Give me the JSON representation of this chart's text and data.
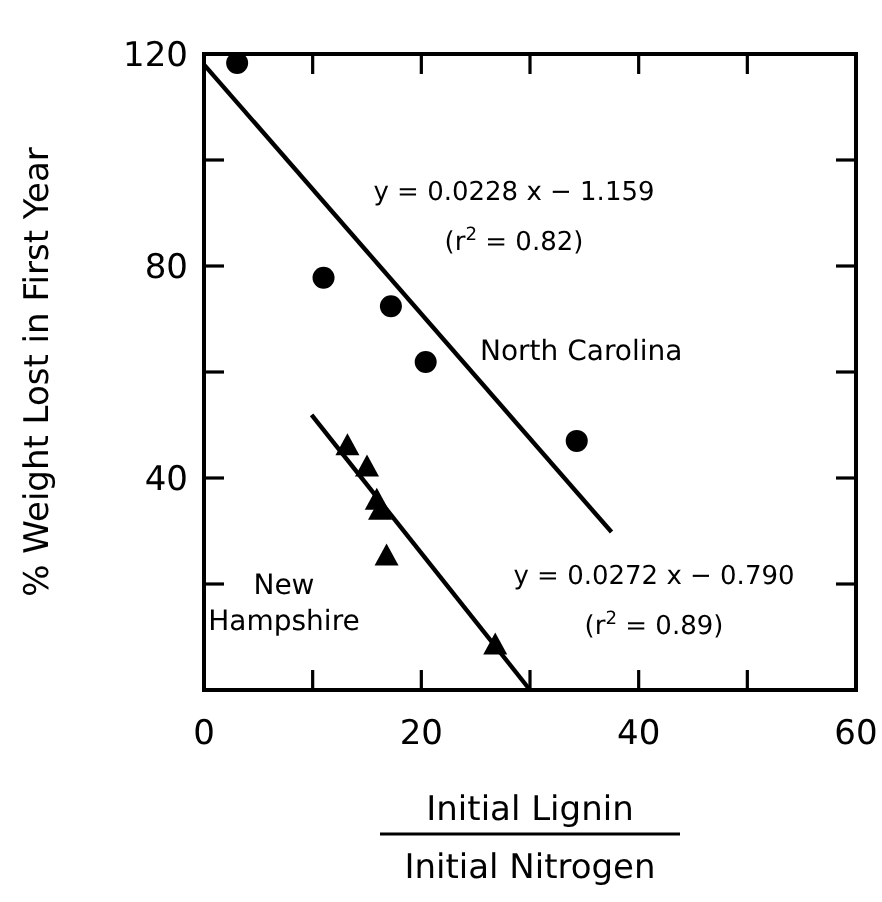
{
  "chart_data": {
    "type": "scatter",
    "xlabel": "Initial Lignin\nInitial Nitrogen",
    "ylabel": "% Weight Lost in First Year",
    "xlim": [
      0,
      60
    ],
    "ylim": [
      0,
      120
    ],
    "xticks": [
      0,
      {
        "value": 10,
        "label": null
      },
      20,
      {
        "value": 30,
        "label": null
      },
      40,
      {
        "value": 50,
        "label": null
      },
      60
    ],
    "yticks": [
      {
        "value": 20,
        "label": null
      },
      40,
      {
        "value": 60,
        "label": null
      },
      80,
      {
        "value": 100,
        "label": null
      },
      120
    ],
    "grid": false,
    "series": [
      {
        "name": "North Carolina",
        "color": "#000000",
        "marker": "circle",
        "x": [
          3.05,
          11.0,
          17.2,
          20.4,
          34.3
        ],
        "values": [
          118.3,
          77.8,
          72.4,
          61.9,
          47.0
        ]
      },
      {
        "name": "New Hampshire",
        "color": "#000000",
        "marker": "triangle",
        "x": [
          13.2,
          15.0,
          15.9,
          16.2,
          16.8,
          26.8
        ],
        "values": [
          46.0,
          42.0,
          35.7,
          33.8,
          25.2,
          8.4
        ]
      },
      {
        "type": "line",
        "color": "#000000",
        "line_style": "solid",
        "x": [
          0,
          37.5
        ],
        "values": [
          118,
          29.8
        ]
      },
      {
        "type": "line",
        "color": "#000000",
        "line_style": "solid",
        "x": [
          9.9,
          30
        ],
        "values": [
          51.9,
          0
        ]
      }
    ],
    "annotations": [
      "y = 0.0228 x − 1.159",
      "(r$^{2}$ = 0.82)",
      "y = 0.0272 x − 0.790",
      "(r$^{2}$ = 0.89)"
    ]
  }
}
